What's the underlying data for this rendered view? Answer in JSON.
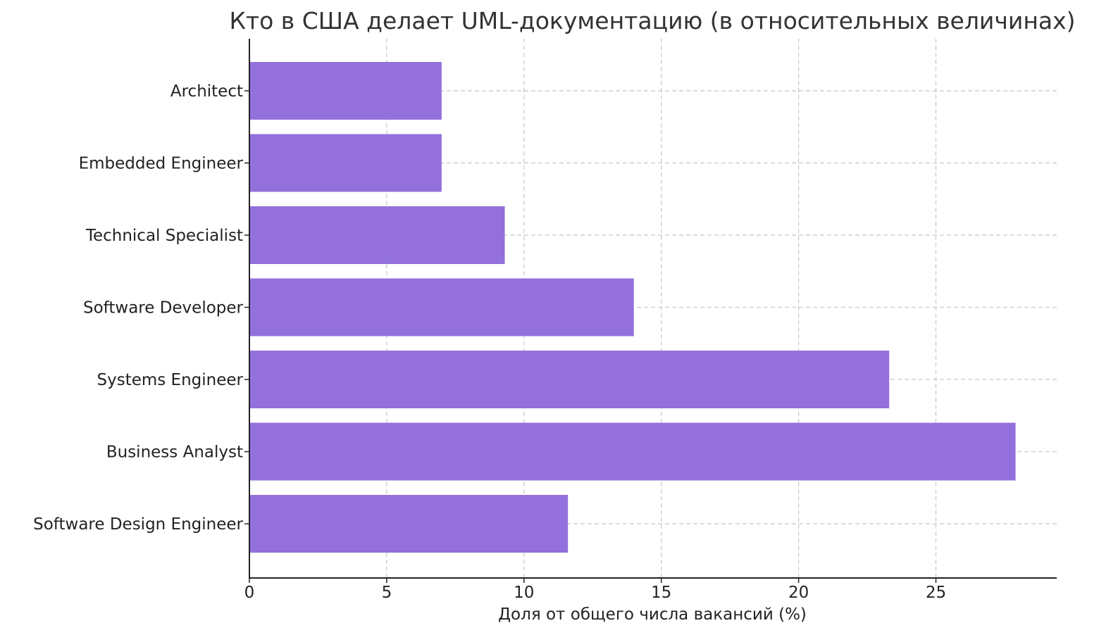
{
  "chart_data": {
    "type": "bar",
    "orientation": "horizontal",
    "title": "Кто в США делает UML-документацию (в относительных величинах)",
    "xlabel": "Доля от общего числа вакансий (%)",
    "ylabel": "",
    "categories": [
      "Software Design Engineer",
      "Business Analyst",
      "Systems Engineer",
      "Software Developer",
      "Technical Specialist",
      "Embedded Engineer",
      "Architect"
    ],
    "values": [
      11.6,
      27.9,
      23.3,
      14.0,
      9.3,
      7.0,
      7.0
    ],
    "xlim": [
      0,
      29.4
    ],
    "xticks": [
      "0",
      "5",
      "10",
      "15",
      "20",
      "25"
    ],
    "grid": true,
    "bar_color": "#9370DB"
  }
}
